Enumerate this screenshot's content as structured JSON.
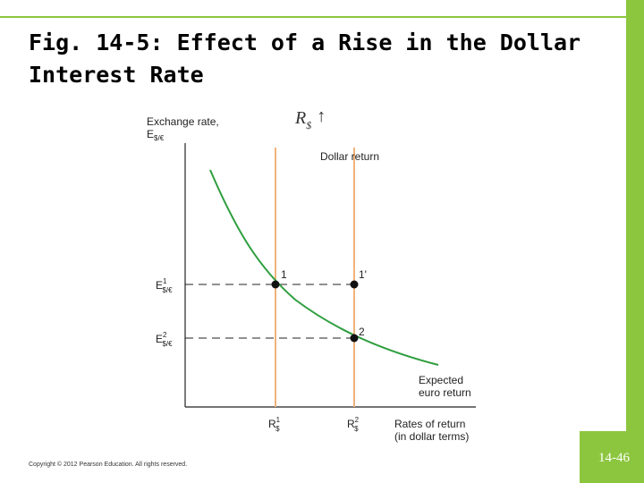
{
  "header": {
    "title_line1": "Fig. 14-5: Effect of a Rise in the Dollar",
    "title_line2": "Interest Rate"
  },
  "diagram": {
    "y_axis_label": "Exchange rate,",
    "y_axis_symbol": {
      "main": "E",
      "sub": "$/€"
    },
    "shift_label": {
      "main": "R",
      "sub": "$",
      "arrow": "↑"
    },
    "dollar_return_label": "Dollar return",
    "points": [
      "1",
      "1'",
      "2"
    ],
    "y_levels": [
      {
        "main": "E",
        "sup": "1",
        "sub": "$/€"
      },
      {
        "main": "E",
        "sup": "2",
        "sub": "$/€"
      }
    ],
    "x_levels": [
      {
        "main": "R",
        "sup": "1",
        "sub": "$"
      },
      {
        "main": "R",
        "sup": "2",
        "sub": "$"
      }
    ],
    "curve_label_line1": "Expected",
    "curve_label_line2": "euro return",
    "x_axis_label_line1": "Rates of return",
    "x_axis_label_line2": "(in dollar terms)"
  },
  "footer": {
    "copyright": "Copyright © 2012 Pearson Education. All rights reserved.",
    "page_number": "14-46"
  }
}
